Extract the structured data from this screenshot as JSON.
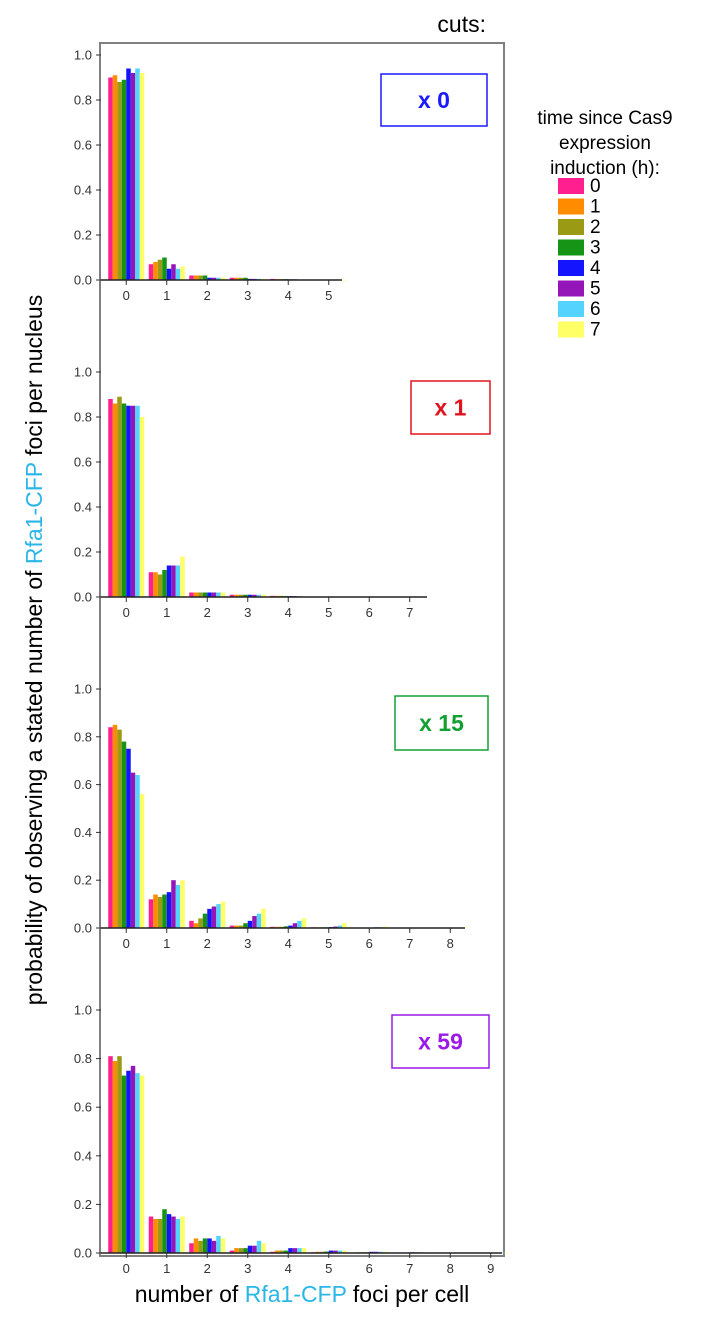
{
  "cuts_label": "cuts:",
  "ylabel_parts": [
    "probability of observing a stated number of ",
    "Rfa1-CFP",
    " foci per nucleus"
  ],
  "xlabel_parts": [
    "number of ",
    "Rfa1-CFP",
    " foci per cell"
  ],
  "legend": {
    "title_lines": [
      "time since Cas9",
      "expression",
      "induction (h):"
    ],
    "entries": [
      "0",
      "1",
      "2",
      "3",
      "4",
      "5",
      "6",
      "7"
    ]
  },
  "colors": {
    "highlight": "#29b6e8",
    "series": [
      "#ff1f8e",
      "#ff8c00",
      "#9a9a14",
      "#159415",
      "#1414ff",
      "#9415b8",
      "#55d3ff",
      "#ffff66"
    ]
  },
  "y_tick_labels": [
    "0.0",
    "0.2",
    "0.4",
    "0.6",
    "0.8",
    "1.0"
  ],
  "chart_data": [
    {
      "type": "bar",
      "cut_label": "x 0",
      "label_color": "#1a1aff",
      "ylim": [
        0,
        1.0
      ],
      "categories": [
        "0",
        "1",
        "2",
        "3",
        "4",
        "5"
      ],
      "series": [
        {
          "name": "0",
          "values": [
            0.9,
            0.07,
            0.02,
            0.01,
            0.005,
            0.002
          ]
        },
        {
          "name": "1",
          "values": [
            0.91,
            0.08,
            0.02,
            0.01,
            0.004,
            0.002
          ]
        },
        {
          "name": "2",
          "values": [
            0.88,
            0.09,
            0.02,
            0.01,
            0.004,
            0.002
          ]
        },
        {
          "name": "3",
          "values": [
            0.89,
            0.1,
            0.02,
            0.01,
            0.004,
            0.002
          ]
        },
        {
          "name": "4",
          "values": [
            0.94,
            0.05,
            0.01,
            0.005,
            0.003,
            0.001
          ]
        },
        {
          "name": "5",
          "values": [
            0.92,
            0.07,
            0.01,
            0.005,
            0.003,
            0.001
          ]
        },
        {
          "name": "6",
          "values": [
            0.94,
            0.05,
            0.01,
            0.005,
            0.002,
            0.001
          ]
        },
        {
          "name": "7",
          "values": [
            0.92,
            0.06,
            0.01,
            0.005,
            0.002,
            0.001
          ]
        }
      ]
    },
    {
      "type": "bar",
      "cut_label": "x 1",
      "label_color": "#e0141e",
      "ylim": [
        0,
        1.0
      ],
      "categories": [
        "0",
        "1",
        "2",
        "3",
        "4",
        "5",
        "6",
        "7"
      ],
      "series": [
        {
          "name": "0",
          "values": [
            0.88,
            0.11,
            0.02,
            0.01,
            0.005,
            0.002,
            0.001,
            0.001
          ]
        },
        {
          "name": "1",
          "values": [
            0.86,
            0.11,
            0.02,
            0.01,
            0.005,
            0.002,
            0.001,
            0.001
          ]
        },
        {
          "name": "2",
          "values": [
            0.89,
            0.1,
            0.02,
            0.01,
            0.005,
            0.002,
            0.001,
            0.001
          ]
        },
        {
          "name": "3",
          "values": [
            0.86,
            0.12,
            0.02,
            0.01,
            0.004,
            0.002,
            0.001,
            0.001
          ]
        },
        {
          "name": "4",
          "values": [
            0.85,
            0.14,
            0.02,
            0.01,
            0.004,
            0.002,
            0.001,
            0.001
          ]
        },
        {
          "name": "5",
          "values": [
            0.85,
            0.14,
            0.02,
            0.01,
            0.004,
            0.002,
            0.001,
            0.001
          ]
        },
        {
          "name": "6",
          "values": [
            0.85,
            0.14,
            0.02,
            0.01,
            0.004,
            0.002,
            0.001,
            0.001
          ]
        },
        {
          "name": "7",
          "values": [
            0.8,
            0.18,
            0.02,
            0.01,
            0.004,
            0.002,
            0.001,
            0.001
          ]
        }
      ]
    },
    {
      "type": "bar",
      "cut_label": "x 15",
      "label_color": "#12a032",
      "ylim": [
        0,
        1.0
      ],
      "categories": [
        "0",
        "1",
        "2",
        "3",
        "4",
        "5",
        "6",
        "7",
        "8"
      ],
      "series": [
        {
          "name": "0",
          "values": [
            0.84,
            0.12,
            0.03,
            0.01,
            0.005,
            0.003,
            0.002,
            0.001,
            0.001
          ]
        },
        {
          "name": "1",
          "values": [
            0.85,
            0.14,
            0.02,
            0.01,
            0.005,
            0.003,
            0.002,
            0.001,
            0.001
          ]
        },
        {
          "name": "2",
          "values": [
            0.83,
            0.13,
            0.04,
            0.01,
            0.005,
            0.003,
            0.002,
            0.001,
            0.001
          ]
        },
        {
          "name": "3",
          "values": [
            0.78,
            0.14,
            0.06,
            0.02,
            0.007,
            0.003,
            0.002,
            0.001,
            0.001
          ]
        },
        {
          "name": "4",
          "values": [
            0.75,
            0.15,
            0.08,
            0.03,
            0.01,
            0.004,
            0.002,
            0.001,
            0.001
          ]
        },
        {
          "name": "5",
          "values": [
            0.65,
            0.2,
            0.09,
            0.05,
            0.02,
            0.006,
            0.003,
            0.001,
            0.001
          ]
        },
        {
          "name": "6",
          "values": [
            0.64,
            0.18,
            0.1,
            0.06,
            0.03,
            0.01,
            0.004,
            0.002,
            0.001
          ]
        },
        {
          "name": "7",
          "values": [
            0.56,
            0.2,
            0.11,
            0.08,
            0.04,
            0.02,
            0.006,
            0.003,
            0.002
          ]
        }
      ]
    },
    {
      "type": "bar",
      "cut_label": "x 59",
      "label_color": "#9c1ae6",
      "ylim": [
        0,
        1.0
      ],
      "categories": [
        "0",
        "1",
        "2",
        "3",
        "4",
        "5",
        "6",
        "7",
        "8",
        "9"
      ],
      "series": [
        {
          "name": "0",
          "values": [
            0.81,
            0.15,
            0.04,
            0.01,
            0.005,
            0.003,
            0.002,
            0.001,
            0.001,
            0.001
          ]
        },
        {
          "name": "1",
          "values": [
            0.79,
            0.14,
            0.06,
            0.02,
            0.01,
            0.005,
            0.003,
            0.002,
            0.001,
            0.001
          ]
        },
        {
          "name": "2",
          "values": [
            0.81,
            0.14,
            0.05,
            0.02,
            0.01,
            0.005,
            0.003,
            0.002,
            0.001,
            0.001
          ]
        },
        {
          "name": "3",
          "values": [
            0.73,
            0.18,
            0.06,
            0.02,
            0.01,
            0.006,
            0.003,
            0.002,
            0.001,
            0.001
          ]
        },
        {
          "name": "4",
          "values": [
            0.75,
            0.16,
            0.06,
            0.03,
            0.02,
            0.01,
            0.005,
            0.003,
            0.002,
            0.001
          ]
        },
        {
          "name": "5",
          "values": [
            0.77,
            0.15,
            0.05,
            0.03,
            0.02,
            0.01,
            0.005,
            0.003,
            0.002,
            0.001
          ]
        },
        {
          "name": "6",
          "values": [
            0.74,
            0.14,
            0.07,
            0.05,
            0.02,
            0.01,
            0.005,
            0.003,
            0.002,
            0.001
          ]
        },
        {
          "name": "7",
          "values": [
            0.73,
            0.15,
            0.06,
            0.04,
            0.02,
            0.01,
            0.005,
            0.003,
            0.002,
            0.001
          ]
        }
      ]
    }
  ]
}
